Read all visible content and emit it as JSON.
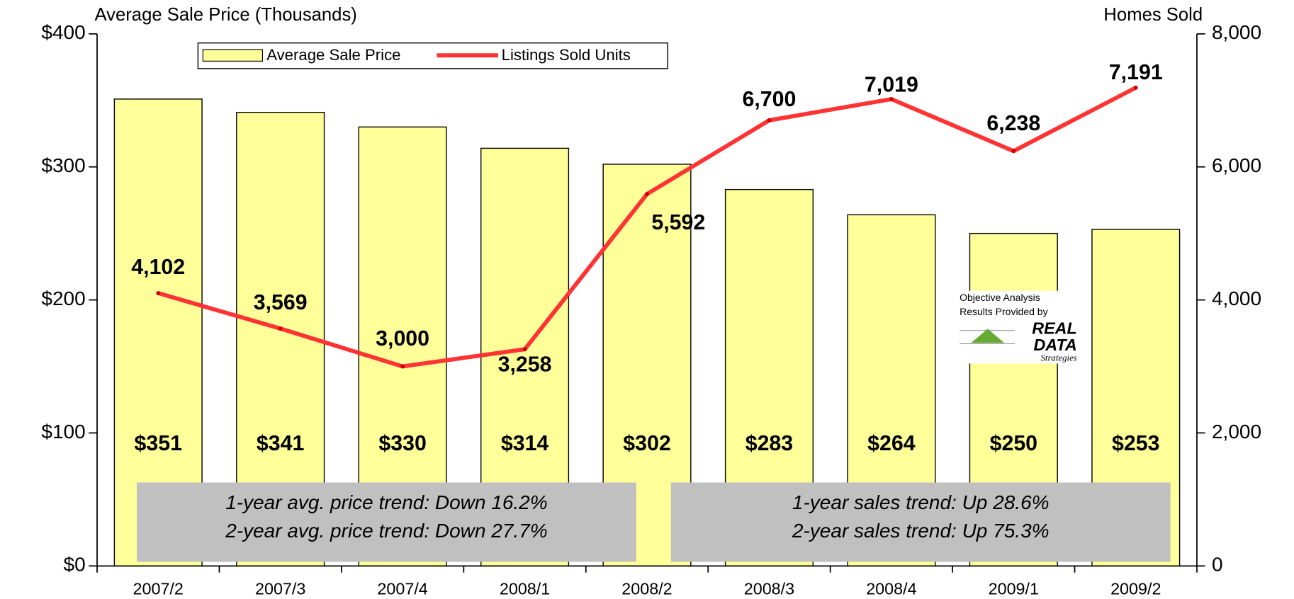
{
  "chart_data": {
    "type": "bar_line",
    "y_axis_title": "Average Sale Price (Thousands)",
    "y2_axis_title": "Homes Sold",
    "categories": [
      "2007/2",
      "2007/3",
      "2007/4",
      "2008/1",
      "2008/2",
      "2008/3",
      "2008/4",
      "2009/1",
      "2009/2"
    ],
    "series": [
      {
        "name": "Average Sale Price",
        "type": "bar",
        "color": "#ffff99",
        "values": [
          351,
          341,
          330,
          314,
          302,
          283,
          264,
          250,
          253
        ],
        "value_labels": [
          "$351",
          "$341",
          "$330",
          "$314",
          "$302",
          "$283",
          "$264",
          "$250",
          "$253"
        ],
        "value_label_colors": [
          "#ff0000",
          "#0000ff",
          "#0000ff",
          "#0000ff",
          "#ff0000",
          "#0000ff",
          "#0000ff",
          "#0000ff",
          "#ff0000"
        ]
      },
      {
        "name": "Listings Sold Units",
        "type": "line",
        "color": "#ff3333",
        "axis": "y2",
        "values": [
          4102,
          3569,
          3000,
          3258,
          5592,
          6700,
          7019,
          6238,
          7191
        ],
        "value_labels": [
          "4,102",
          "3,569",
          "3,000",
          "3,258",
          "5,592",
          "6,700",
          "7,019",
          "6,238",
          "7,191"
        ]
      }
    ],
    "ylim": [
      0,
      400
    ],
    "yticks": [
      {
        "value": 0,
        "label": "$0"
      },
      {
        "value": 100,
        "label": "$100"
      },
      {
        "value": 200,
        "label": "$200"
      },
      {
        "value": 300,
        "label": "$300"
      },
      {
        "value": 400,
        "label": "$400"
      }
    ],
    "y2lim": [
      0,
      8000
    ],
    "y2ticks": [
      0,
      {
        "value": 2000,
        "label": "2,000"
      },
      {
        "value": 4000,
        "label": "4,000"
      },
      {
        "value": 6000,
        "label": "6,000"
      },
      {
        "value": 8000,
        "label": "8,000"
      }
    ],
    "annotations": [
      [
        "1-year avg. price trend: Down 16.2%",
        "2-year avg. price trend: Down 27.7%"
      ],
      [
        "1-year sales trend: Up 28.6%",
        "2-year sales trend: Up 75.3%"
      ]
    ],
    "logo": {
      "lines": [
        "Objective Analysis",
        "Results Provided by"
      ],
      "brand": [
        "REAL",
        "DATA"
      ],
      "tagline": "Strategies"
    }
  }
}
